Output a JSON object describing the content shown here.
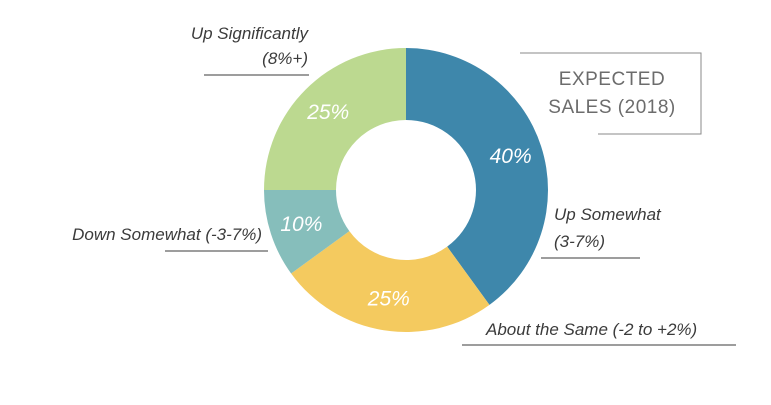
{
  "chart_data": {
    "type": "pie",
    "title_lines": [
      "EXPECTED",
      "SALES (2018)"
    ],
    "slices": [
      {
        "label_lines": [
          "Up Somewhat",
          "(3-7%)"
        ],
        "value": 40,
        "value_label": "40%",
        "color": "#3e87ab"
      },
      {
        "label_lines": [
          "About the Same (-2 to +2%)"
        ],
        "value": 25,
        "value_label": "25%",
        "color": "#f4ca5f"
      },
      {
        "label_lines": [
          "Down Somewhat (-3-7%)"
        ],
        "value": 10,
        "value_label": "10%",
        "color": "#86bebb"
      },
      {
        "label_lines": [
          "Up Significantly",
          "(8%+)"
        ],
        "value": 25,
        "value_label": "25%",
        "color": "#bcd990"
      }
    ]
  }
}
